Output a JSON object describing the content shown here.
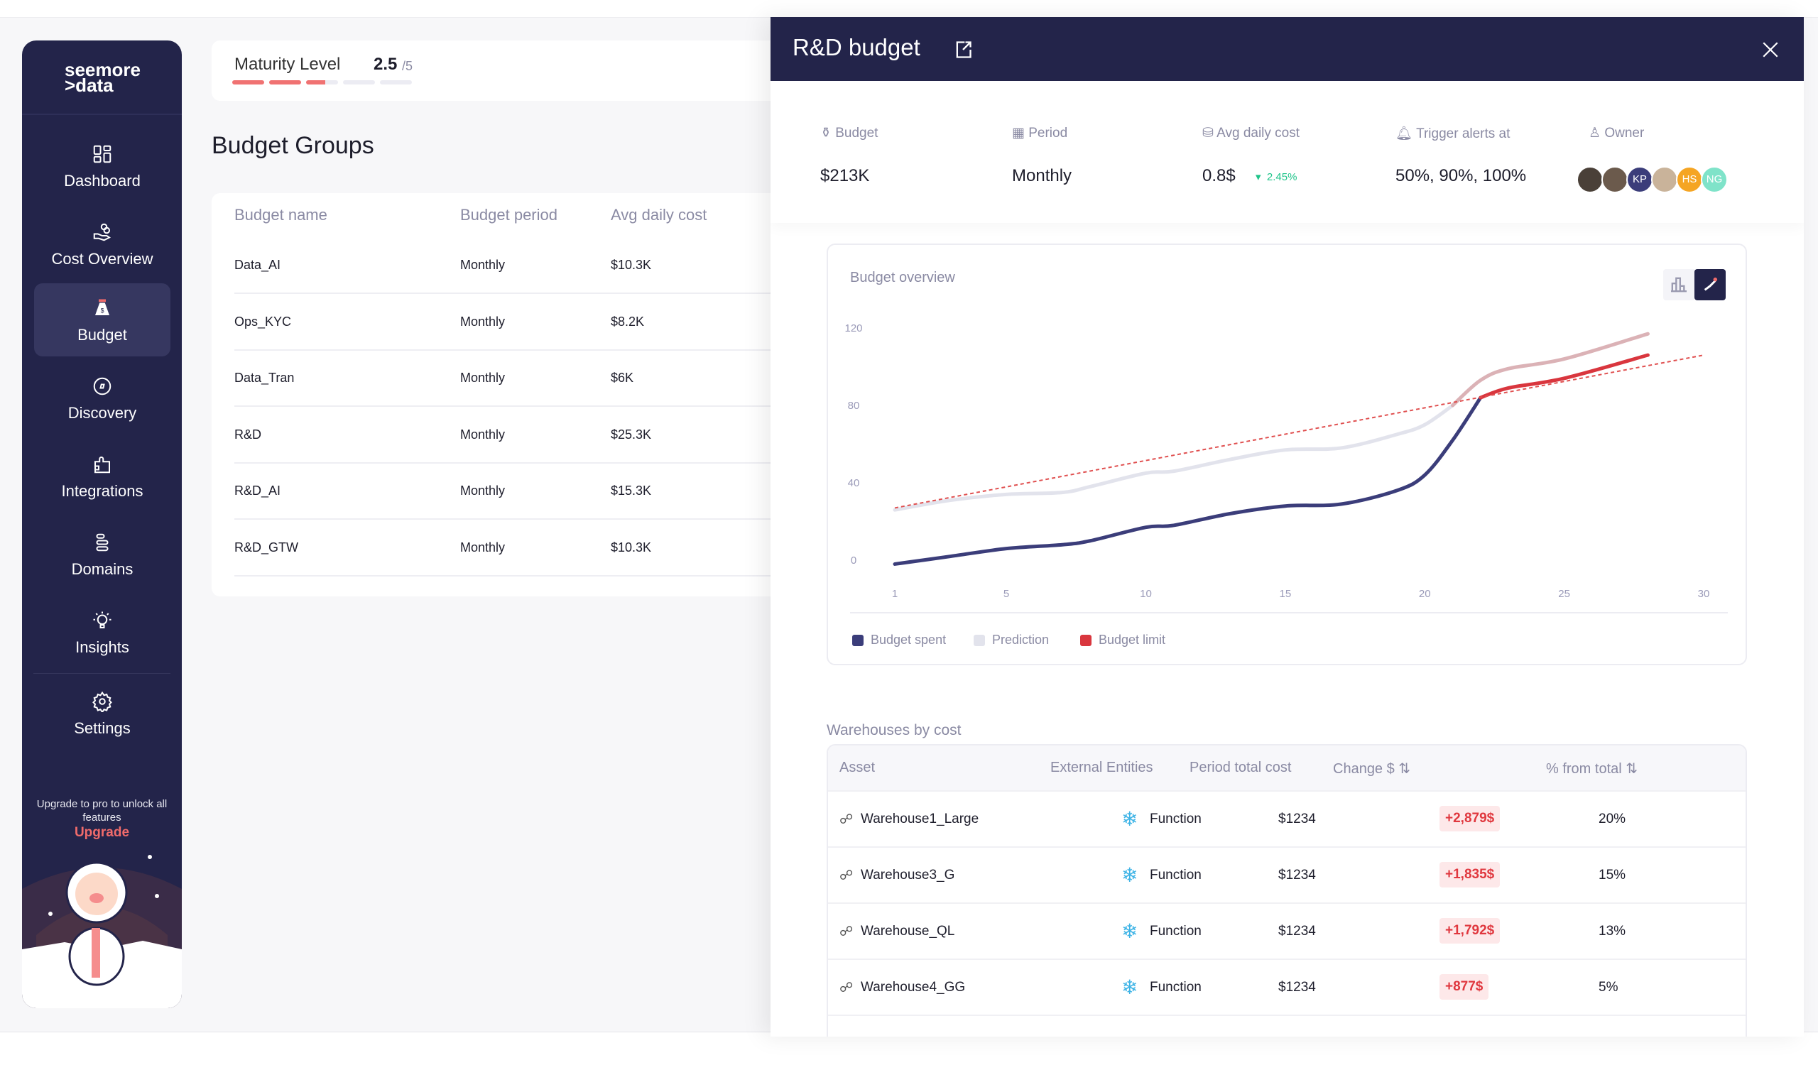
{
  "sidebar": {
    "logo": "seemore >data",
    "items": [
      {
        "label": "Dashboard"
      },
      {
        "label": "Cost Overview"
      },
      {
        "label": "Budget"
      },
      {
        "label": "Discovery"
      },
      {
        "label": "Integrations"
      },
      {
        "label": "Domains"
      },
      {
        "label": "Insights"
      },
      {
        "label": "Settings"
      }
    ],
    "upgrade_text": "Upgrade to pro to unlock all features",
    "upgrade_link": "Upgrade"
  },
  "maturity": {
    "label": "Maturity Level",
    "value": "2.5",
    "max": "/5",
    "level": 2.5
  },
  "budget_groups": {
    "title": "Budget Groups",
    "columns": [
      "Budget name",
      "Budget period",
      "Avg daily cost"
    ],
    "rows": [
      [
        "Data_AI",
        "Monthly",
        "$10.3K"
      ],
      [
        "Ops_KYC",
        "Monthly",
        "$8.2K"
      ],
      [
        "Data_Tran",
        "Monthly",
        "$6K"
      ],
      [
        "R&D",
        "Monthly",
        "$25.3K"
      ],
      [
        "R&D_AI",
        "Monthly",
        "$15.3K"
      ],
      [
        "R&D_GTW",
        "Monthly",
        "$10.3K"
      ]
    ]
  },
  "panel": {
    "title": "R&D budget",
    "stats": {
      "budget_label": "Budget",
      "budget": "$213K",
      "period_label": "Period",
      "period": "Monthly",
      "avg_label": "Avg daily cost",
      "avg": "0.8$",
      "avg_change": "2.45%",
      "alerts_label": "Trigger alerts at",
      "alerts": "50%, 90%, 100%",
      "owner_label": "Owner",
      "owners": [
        {
          "initials": "",
          "color": "#4a4038"
        },
        {
          "initials": "",
          "color": "#6b5a4c"
        },
        {
          "initials": "KP",
          "color": "#3b3d7a"
        },
        {
          "initials": "",
          "color": "#c9b39a"
        },
        {
          "initials": "HS",
          "color": "#f5a524"
        },
        {
          "initials": "NG",
          "color": "#7fe3c9"
        }
      ]
    },
    "warehouses": {
      "title": "Warehouses by cost",
      "columns": [
        "Asset",
        "External Entities",
        "Period total cost",
        "Change $ ⇅",
        "% from total ⇅"
      ],
      "rows": [
        [
          "Warehouse1_Large",
          "Function",
          "$1234",
          "+2,879$",
          "20%"
        ],
        [
          "Warehouse3_G",
          "Function",
          "$1234",
          "+1,835$",
          "15%"
        ],
        [
          "Warehouse_QL",
          "Function",
          "$1234",
          "+1,792$",
          "13%"
        ],
        [
          "Warehouse4_GG",
          "Function",
          "$1234",
          "+877$",
          "5%"
        ]
      ]
    }
  },
  "chart_data": {
    "type": "line",
    "title": "Budget overview",
    "xlabel": "",
    "ylabel": "",
    "xlim": [
      1,
      30
    ],
    "ylim": [
      0,
      120
    ],
    "x_ticks": [
      1,
      5,
      10,
      15,
      20,
      25,
      30
    ],
    "y_ticks": [
      0,
      40,
      80,
      120
    ],
    "series": [
      {
        "name": "Budget spent",
        "color": "#3b3d7a",
        "over_color": "#d9363e",
        "x": [
          1,
          3,
          5,
          7,
          8,
          10,
          11,
          13,
          15,
          17,
          19,
          20,
          21,
          22,
          23,
          25,
          28
        ],
        "y": [
          -2,
          2,
          6,
          8,
          10,
          17,
          18,
          24,
          28,
          29,
          36,
          44,
          62,
          84,
          89,
          94,
          106
        ]
      },
      {
        "name": "Prediction",
        "color": "#e2e3ec",
        "over_color": "#dbb2b6",
        "x": [
          1,
          3,
          5,
          7,
          8,
          10,
          11,
          13,
          15,
          17,
          19,
          20,
          21,
          22,
          23,
          25,
          28
        ],
        "y": [
          26,
          31,
          34,
          35,
          38,
          45,
          46,
          52,
          57,
          58,
          65,
          70,
          80,
          93,
          99,
          104,
          117
        ]
      },
      {
        "name": "Budget limit",
        "color": "#e05050",
        "x": [
          1,
          30
        ],
        "y": [
          27,
          106
        ]
      }
    ],
    "legend": [
      "Budget spent",
      "Prediction",
      "Budget limit"
    ],
    "legend_position": "bottom-left"
  }
}
